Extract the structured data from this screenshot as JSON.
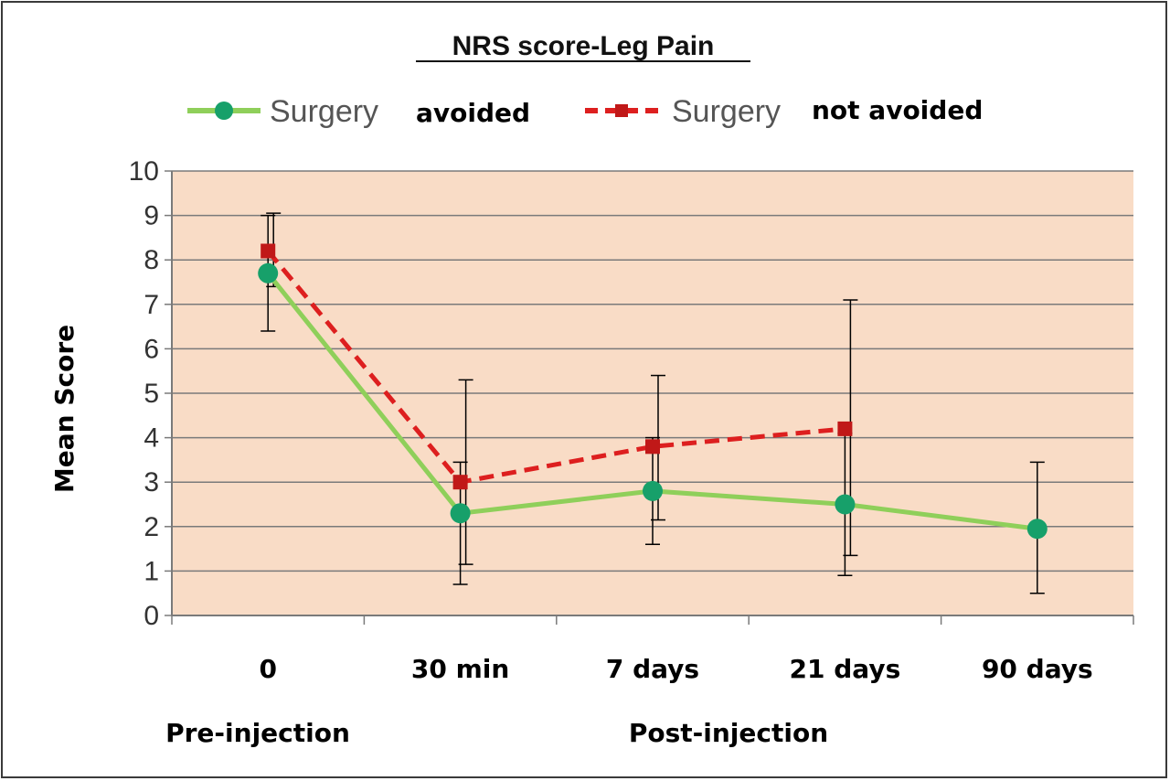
{
  "chart_data": {
    "type": "line",
    "title": "NRS score-Leg Pain",
    "ylabel": "Mean Score",
    "xlabel": "",
    "categories": [
      "0",
      "30 min",
      "7 days",
      "21 days",
      "90 days"
    ],
    "phase_labels": [
      "Pre-injection",
      "Post-injection"
    ],
    "ylim": [
      0,
      10
    ],
    "yticks": [
      0,
      1,
      2,
      3,
      4,
      5,
      6,
      7,
      8,
      9,
      10
    ],
    "grid": true,
    "legend_position": "top",
    "plot_background": "#f9dcc6",
    "series": [
      {
        "name": "Surgery avoided",
        "legend_prefix": "Surgery",
        "legend_suffix": "avoided",
        "color": "#8fcf5a",
        "marker_color": "#17a06a",
        "marker": "circle",
        "line_style": "solid",
        "values": [
          7.7,
          2.3,
          2.8,
          2.5,
          1.95
        ],
        "error_low": [
          6.4,
          0.7,
          1.6,
          0.9,
          0.5
        ],
        "error_high": [
          9.0,
          3.45,
          4.0,
          4.1,
          3.45
        ]
      },
      {
        "name": "Surgery not avoided",
        "legend_prefix": "Surgery",
        "legend_suffix": "not avoided",
        "color": "#dd1f1f",
        "marker_color": "#c01818",
        "marker": "square",
        "line_style": "dashed",
        "values": [
          8.2,
          3.0,
          3.8,
          4.2,
          null
        ],
        "error_low": [
          7.4,
          1.15,
          2.15,
          1.35,
          null
        ],
        "error_high": [
          9.05,
          5.3,
          5.4,
          7.1,
          null
        ]
      }
    ]
  }
}
